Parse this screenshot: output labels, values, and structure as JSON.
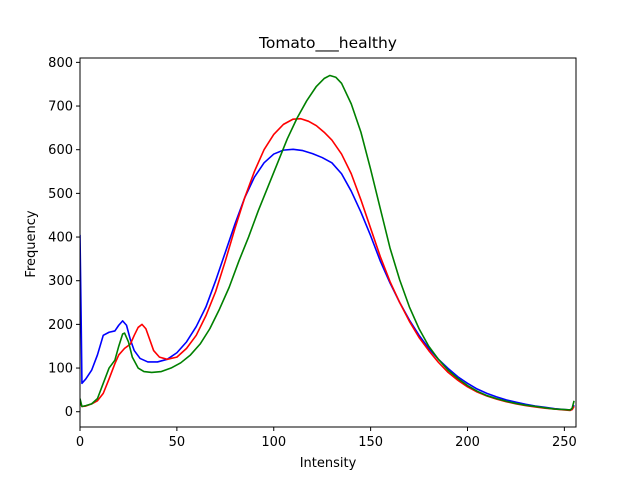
{
  "chart_data": {
    "type": "line",
    "title": "Tomato___healthy",
    "xlabel": "Intensity",
    "ylabel": "Frequency",
    "xlim": [
      0,
      256
    ],
    "ylim": [
      -35,
      810
    ],
    "xticks": [
      0,
      50,
      100,
      150,
      200,
      250
    ],
    "yticks": [
      0,
      100,
      200,
      300,
      400,
      500,
      600,
      700,
      800
    ],
    "grid": false,
    "legend": "none",
    "series": [
      {
        "color": "#0000ff",
        "points": [
          [
            0,
            405
          ],
          [
            0.6,
            210
          ],
          [
            1,
            65
          ],
          [
            3,
            75
          ],
          [
            6,
            95
          ],
          [
            9,
            130
          ],
          [
            12,
            175
          ],
          [
            15,
            182
          ],
          [
            18,
            185
          ],
          [
            20,
            198
          ],
          [
            22,
            208
          ],
          [
            24,
            198
          ],
          [
            26,
            165
          ],
          [
            28,
            140
          ],
          [
            31,
            122
          ],
          [
            35,
            114
          ],
          [
            40,
            114
          ],
          [
            45,
            120
          ],
          [
            50,
            135
          ],
          [
            55,
            160
          ],
          [
            60,
            195
          ],
          [
            65,
            240
          ],
          [
            70,
            300
          ],
          [
            75,
            365
          ],
          [
            80,
            430
          ],
          [
            85,
            490
          ],
          [
            90,
            537
          ],
          [
            95,
            570
          ],
          [
            100,
            590
          ],
          [
            105,
            599
          ],
          [
            110,
            601
          ],
          [
            115,
            598
          ],
          [
            120,
            591
          ],
          [
            125,
            582
          ],
          [
            130,
            570
          ],
          [
            135,
            545
          ],
          [
            140,
            505
          ],
          [
            145,
            457
          ],
          [
            150,
            403
          ],
          [
            155,
            345
          ],
          [
            160,
            295
          ],
          [
            165,
            250
          ],
          [
            170,
            210
          ],
          [
            175,
            175
          ],
          [
            180,
            145
          ],
          [
            185,
            120
          ],
          [
            190,
            99
          ],
          [
            195,
            80
          ],
          [
            200,
            65
          ],
          [
            205,
            52
          ],
          [
            210,
            42
          ],
          [
            215,
            34
          ],
          [
            220,
            27
          ],
          [
            225,
            22
          ],
          [
            230,
            17
          ],
          [
            235,
            13
          ],
          [
            240,
            10
          ],
          [
            245,
            7
          ],
          [
            250,
            5
          ],
          [
            253,
            4
          ],
          [
            254,
            5
          ],
          [
            255,
            15
          ]
        ]
      },
      {
        "color": "#ff0000",
        "points": [
          [
            0,
            22
          ],
          [
            1,
            12
          ],
          [
            3,
            13
          ],
          [
            6,
            18
          ],
          [
            9,
            25
          ],
          [
            12,
            42
          ],
          [
            15,
            75
          ],
          [
            18,
            110
          ],
          [
            20,
            130
          ],
          [
            23,
            145
          ],
          [
            26,
            155
          ],
          [
            28,
            175
          ],
          [
            30,
            193
          ],
          [
            32,
            200
          ],
          [
            34,
            190
          ],
          [
            36,
            165
          ],
          [
            38,
            140
          ],
          [
            41,
            125
          ],
          [
            45,
            120
          ],
          [
            50,
            125
          ],
          [
            55,
            145
          ],
          [
            60,
            175
          ],
          [
            65,
            220
          ],
          [
            70,
            275
          ],
          [
            75,
            345
          ],
          [
            80,
            420
          ],
          [
            85,
            490
          ],
          [
            90,
            550
          ],
          [
            95,
            600
          ],
          [
            100,
            635
          ],
          [
            105,
            658
          ],
          [
            110,
            670
          ],
          [
            114,
            671
          ],
          [
            118,
            665
          ],
          [
            122,
            655
          ],
          [
            126,
            640
          ],
          [
            130,
            622
          ],
          [
            135,
            590
          ],
          [
            140,
            545
          ],
          [
            145,
            485
          ],
          [
            150,
            420
          ],
          [
            155,
            355
          ],
          [
            160,
            298
          ],
          [
            165,
            250
          ],
          [
            170,
            207
          ],
          [
            175,
            170
          ],
          [
            180,
            140
          ],
          [
            185,
            113
          ],
          [
            190,
            90
          ],
          [
            195,
            72
          ],
          [
            200,
            57
          ],
          [
            205,
            45
          ],
          [
            210,
            36
          ],
          [
            215,
            29
          ],
          [
            220,
            23
          ],
          [
            225,
            18
          ],
          [
            230,
            14
          ],
          [
            235,
            11
          ],
          [
            240,
            8
          ],
          [
            245,
            6
          ],
          [
            250,
            4
          ],
          [
            253,
            3
          ],
          [
            254,
            5
          ],
          [
            255,
            12
          ]
        ]
      },
      {
        "color": "#008000",
        "points": [
          [
            0,
            30
          ],
          [
            1,
            12
          ],
          [
            3,
            14
          ],
          [
            6,
            18
          ],
          [
            9,
            30
          ],
          [
            12,
            65
          ],
          [
            15,
            100
          ],
          [
            18,
            118
          ],
          [
            20,
            150
          ],
          [
            22,
            178
          ],
          [
            23,
            180
          ],
          [
            25,
            160
          ],
          [
            27,
            125
          ],
          [
            30,
            100
          ],
          [
            33,
            92
          ],
          [
            37,
            90
          ],
          [
            42,
            92
          ],
          [
            47,
            100
          ],
          [
            52,
            112
          ],
          [
            57,
            130
          ],
          [
            62,
            155
          ],
          [
            67,
            190
          ],
          [
            72,
            235
          ],
          [
            77,
            285
          ],
          [
            82,
            345
          ],
          [
            87,
            400
          ],
          [
            92,
            460
          ],
          [
            97,
            515
          ],
          [
            102,
            570
          ],
          [
            107,
            625
          ],
          [
            112,
            672
          ],
          [
            117,
            712
          ],
          [
            122,
            745
          ],
          [
            126,
            763
          ],
          [
            129,
            770
          ],
          [
            132,
            766
          ],
          [
            135,
            752
          ],
          [
            140,
            705
          ],
          [
            145,
            640
          ],
          [
            150,
            555
          ],
          [
            155,
            465
          ],
          [
            160,
            375
          ],
          [
            165,
            302
          ],
          [
            170,
            240
          ],
          [
            175,
            190
          ],
          [
            180,
            150
          ],
          [
            185,
            120
          ],
          [
            190,
            95
          ],
          [
            195,
            76
          ],
          [
            200,
            60
          ],
          [
            205,
            47
          ],
          [
            210,
            37
          ],
          [
            215,
            30
          ],
          [
            220,
            24
          ],
          [
            225,
            19
          ],
          [
            230,
            15
          ],
          [
            235,
            12
          ],
          [
            240,
            9
          ],
          [
            245,
            6
          ],
          [
            250,
            5
          ],
          [
            253,
            4
          ],
          [
            254,
            8
          ],
          [
            255,
            25
          ]
        ]
      }
    ]
  }
}
